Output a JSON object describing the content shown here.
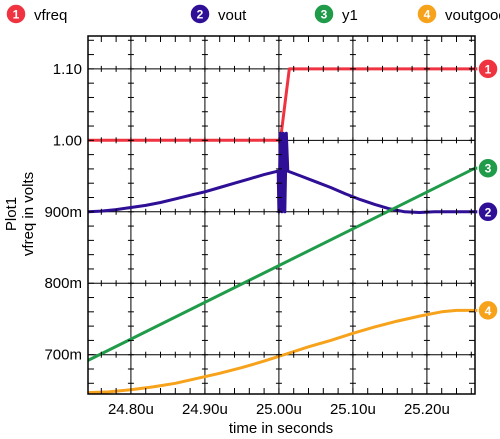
{
  "chart_data": {
    "type": "line",
    "x_label": "time in seconds",
    "y_label_plot": "Plot1",
    "y_label_signal": "vfreq in volts",
    "xlim": [
      24.742,
      25.265
    ],
    "ylim": [
      0.645,
      1.146
    ],
    "grid": true,
    "legend_position": "top",
    "x_ticks": [
      {
        "value": 24.8,
        "label": "24.80u"
      },
      {
        "value": 24.9,
        "label": "24.90u"
      },
      {
        "value": 25.0,
        "label": "25.00u"
      },
      {
        "value": 25.1,
        "label": "25.10u"
      },
      {
        "value": 25.2,
        "label": "25.20u"
      }
    ],
    "y_ticks": [
      {
        "value": 0.7,
        "label": "700m"
      },
      {
        "value": 0.8,
        "label": "800m"
      },
      {
        "value": 0.9,
        "label": "900m"
      },
      {
        "value": 1.0,
        "label": "1.00"
      },
      {
        "value": 1.1,
        "label": "1.10"
      }
    ],
    "series": [
      {
        "name": "vfreq",
        "number": "1",
        "color": "#ef3340",
        "points": [
          [
            24.742,
            1.0
          ],
          [
            25.002,
            1.0
          ],
          [
            25.014,
            1.1
          ],
          [
            25.265,
            1.1
          ]
        ]
      },
      {
        "name": "vout",
        "number": "2",
        "color": "#2e0f96",
        "points": [
          [
            24.742,
            0.9
          ],
          [
            24.76,
            0.901
          ],
          [
            24.78,
            0.903
          ],
          [
            24.8,
            0.906
          ],
          [
            24.82,
            0.909
          ],
          [
            24.84,
            0.913
          ],
          [
            24.86,
            0.918
          ],
          [
            24.88,
            0.923
          ],
          [
            24.9,
            0.928
          ],
          [
            24.92,
            0.934
          ],
          [
            24.94,
            0.94
          ],
          [
            24.96,
            0.946
          ],
          [
            24.98,
            0.952
          ],
          [
            24.999,
            0.957
          ],
          [
            25.0,
            0.9
          ],
          [
            25.002,
            1.01
          ],
          [
            25.004,
            0.9
          ],
          [
            25.006,
            1.01
          ],
          [
            25.008,
            0.9
          ],
          [
            25.01,
            1.01
          ],
          [
            25.012,
            0.957
          ],
          [
            25.03,
            0.95
          ],
          [
            25.05,
            0.942
          ],
          [
            25.07,
            0.934
          ],
          [
            25.09,
            0.925
          ],
          [
            25.11,
            0.917
          ],
          [
            25.13,
            0.91
          ],
          [
            25.15,
            0.904
          ],
          [
            25.17,
            0.9
          ],
          [
            25.19,
            0.899
          ],
          [
            25.21,
            0.9
          ],
          [
            25.23,
            0.9
          ],
          [
            25.265,
            0.9
          ]
        ]
      },
      {
        "name": "y1",
        "number": "3",
        "color": "#1f9b49",
        "points": [
          [
            24.742,
            0.692
          ],
          [
            25.265,
            0.961
          ]
        ]
      },
      {
        "name": "voutgood",
        "number": "4",
        "color": "#f7a21b",
        "points": [
          [
            24.742,
            0.647
          ],
          [
            24.77,
            0.648
          ],
          [
            24.8,
            0.651
          ],
          [
            24.83,
            0.655
          ],
          [
            24.86,
            0.66
          ],
          [
            24.89,
            0.667
          ],
          [
            24.92,
            0.674
          ],
          [
            24.95,
            0.682
          ],
          [
            24.98,
            0.691
          ],
          [
            25.01,
            0.701
          ],
          [
            25.04,
            0.711
          ],
          [
            25.07,
            0.72
          ],
          [
            25.1,
            0.73
          ],
          [
            25.13,
            0.739
          ],
          [
            25.16,
            0.747
          ],
          [
            25.19,
            0.754
          ],
          [
            25.22,
            0.76
          ],
          [
            25.24,
            0.762
          ],
          [
            25.265,
            0.762
          ]
        ]
      }
    ]
  }
}
